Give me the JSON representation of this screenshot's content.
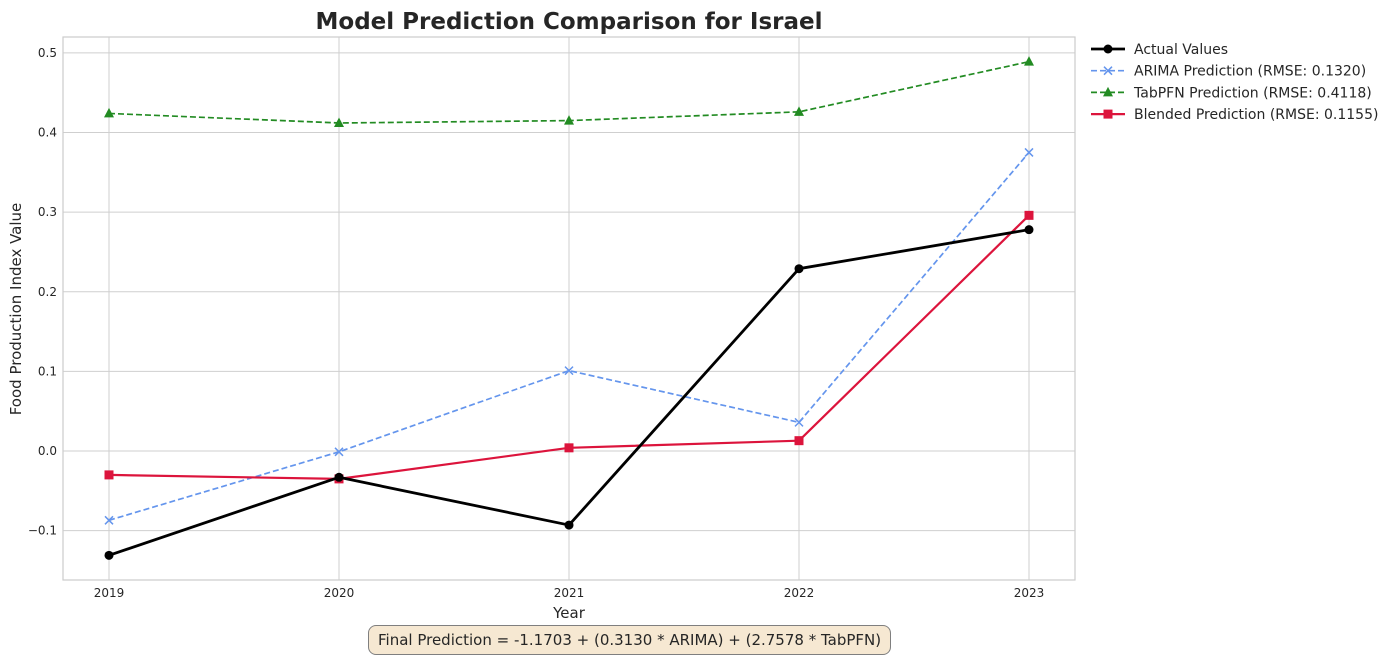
{
  "chart_data": {
    "type": "line",
    "title": "Model Prediction Comparison for Israel",
    "xlabel": "Year",
    "ylabel": "Food Production Index Value",
    "categories": [
      "2019",
      "2020",
      "2021",
      "2022",
      "2023"
    ],
    "ylim": [
      -0.162,
      0.52
    ],
    "yticks": [
      -0.1,
      0.0,
      0.1,
      0.2,
      0.3,
      0.4,
      0.5
    ],
    "ytick_labels": [
      "−0.1",
      "0.0",
      "0.1",
      "0.2",
      "0.3",
      "0.4",
      "0.5"
    ],
    "grid": true,
    "legend_position": "outside-top-right",
    "series": [
      {
        "name": "Actual Values",
        "values": [
          -0.131,
          -0.033,
          -0.093,
          0.229,
          0.278
        ],
        "color": "#000000",
        "dash": "solid",
        "marker": "circle",
        "width": "thick"
      },
      {
        "name": "ARIMA Prediction (RMSE: 0.1320)",
        "values": [
          -0.087,
          -0.001,
          0.101,
          0.036,
          0.375
        ],
        "color": "#6495ed",
        "dash": "dashed",
        "marker": "x",
        "width": "normal"
      },
      {
        "name": "TabPFN Prediction (RMSE: 0.4118)",
        "values": [
          0.424,
          0.412,
          0.415,
          0.426,
          0.489
        ],
        "color": "#228b22",
        "dash": "dashed",
        "marker": "triangle",
        "width": "normal"
      },
      {
        "name": "Blended Prediction (RMSE: 0.1155)",
        "values": [
          -0.03,
          -0.035,
          0.004,
          0.013,
          0.296
        ],
        "color": "#dc143c",
        "dash": "solid",
        "marker": "square",
        "width": "medium"
      }
    ],
    "annotation": "Final Prediction = -1.1703 + (0.3130 * ARIMA) + (2.7578 * TabPFN)",
    "annotation_box_color": "#f6e8d2"
  }
}
